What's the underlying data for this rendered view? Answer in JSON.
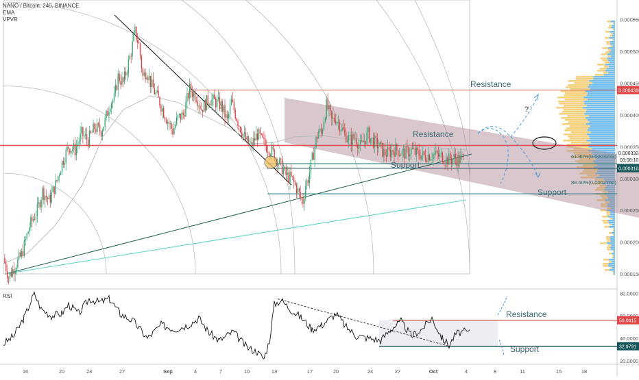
{
  "header": {
    "symbol_line": "NANO / Bitcoin, 240, BINANCE",
    "indicators": [
      "EMA",
      "VPVR"
    ]
  },
  "rsi_panel": {
    "label": "RSI"
  },
  "colors": {
    "up": "#3aa575",
    "down": "#d64545",
    "resistance_line": "#e05555",
    "support_line": "#2f8a86",
    "trendline": "#2e6b5e",
    "trendline_light": "#5fd3c6",
    "channel_fill": "#a9838f",
    "vpvr_up": "#66b6e8",
    "vpvr_down": "#f4c96a",
    "fan_arc": "#bbbbbb",
    "projection": "#4d9bd9"
  },
  "chart_data": [
    {
      "type": "candlestick",
      "title": "NANO / Bitcoin, 240, BINANCE",
      "x_tick_labels": [
        "16",
        "20",
        "23",
        "27",
        "Sep",
        "4",
        "7",
        "10",
        "13",
        "17",
        "20",
        "24",
        "27",
        "Oct",
        "4",
        "8",
        "11",
        "15",
        "18"
      ],
      "y_tick_labels": [
        "0.0001500",
        "0.0002000",
        "0.0002500",
        "0.0003000",
        "0.0003500",
        "0.0004000",
        "0.0004500",
        "0.0005000",
        "0.0005500"
      ],
      "ylim": [
        0.0001287,
        0.0005805
      ],
      "price_path": [
        [
          0,
          0.000175
        ],
        [
          4,
          0.000145
        ],
        [
          8,
          0.00016
        ],
        [
          14,
          0.00018
        ],
        [
          20,
          0.000225
        ],
        [
          26,
          0.00025
        ],
        [
          30,
          0.00028
        ],
        [
          35,
          0.000265
        ],
        [
          40,
          0.00029
        ],
        [
          45,
          0.000325
        ],
        [
          50,
          0.00035
        ],
        [
          55,
          0.000345
        ],
        [
          60,
          0.00037
        ],
        [
          65,
          0.00036
        ],
        [
          70,
          0.00038
        ],
        [
          75,
          0.000375
        ],
        [
          78,
          0.00039
        ],
        [
          82,
          0.00042
        ],
        [
          85,
          0.000425
        ],
        [
          88,
          0.00046
        ],
        [
          92,
          0.00045
        ],
        [
          97,
          0.00049
        ],
        [
          101,
          0.00053
        ],
        [
          104,
          0.00051
        ],
        [
          107,
          0.00046
        ],
        [
          110,
          0.00047
        ],
        [
          114,
          0.000445
        ],
        [
          120,
          0.00042
        ],
        [
          125,
          0.000395
        ],
        [
          130,
          0.000375
        ],
        [
          134,
          0.000395
        ],
        [
          138,
          0.0004
        ],
        [
          143,
          0.00044
        ],
        [
          148,
          0.00043
        ],
        [
          152,
          0.00041
        ],
        [
          158,
          0.000425
        ],
        [
          163,
          0.00042
        ],
        [
          167,
          0.000415
        ],
        [
          172,
          0.00039
        ],
        [
          175,
          0.00042
        ],
        [
          180,
          0.00039
        ],
        [
          186,
          0.00036
        ],
        [
          190,
          0.00035
        ],
        [
          195,
          0.00037
        ],
        [
          200,
          0.000355
        ],
        [
          207,
          0.00034
        ],
        [
          213,
          0.00032
        ],
        [
          217,
          0.000305
        ],
        [
          221,
          0.0003
        ],
        [
          225,
          0.000285
        ],
        [
          228,
          0.00027
        ],
        [
          230,
          0.000265
        ],
        [
          232,
          0.00029
        ],
        [
          234,
          0.0003
        ],
        [
          236,
          0.00032
        ],
        [
          238,
          0.00034
        ],
        [
          240,
          0.00036
        ],
        [
          242,
          0.000375
        ],
        [
          244,
          0.00037
        ],
        [
          246,
          0.000395
        ],
        [
          248,
          0.000415
        ],
        [
          250,
          0.000405
        ],
        [
          252,
          0.00039
        ],
        [
          255,
          0.000395
        ],
        [
          258,
          0.000385
        ],
        [
          262,
          0.00037
        ],
        [
          266,
          0.00036
        ],
        [
          270,
          0.000365
        ],
        [
          274,
          0.00035
        ],
        [
          277,
          0.00036
        ],
        [
          280,
          0.00037
        ],
        [
          283,
          0.00036
        ],
        [
          286,
          0.000355
        ],
        [
          289,
          0.00035
        ],
        [
          292,
          0.00034
        ],
        [
          296,
          0.00034
        ],
        [
          299,
          0.000345
        ],
        [
          302,
          0.000345
        ],
        [
          306,
          0.00034
        ],
        [
          309,
          0.00034
        ],
        [
          313,
          0.000345
        ],
        [
          316,
          0.00034
        ],
        [
          320,
          0.000338
        ],
        [
          323,
          0.000335
        ],
        [
          326,
          0.000337
        ],
        [
          330,
          0.000338
        ],
        [
          334,
          0.000335
        ],
        [
          337,
          0.000335
        ],
        [
          340,
          0.00033
        ],
        [
          343,
          0.00033
        ],
        [
          346,
          0.000332
        ],
        [
          350,
          0.00033
        ],
        [
          353,
          0.000332
        ]
      ],
      "levels": [
        {
          "label": "Resistance",
          "price": 0.000439,
          "tag": "0.0004390"
        },
        {
          "label": "Resistance",
          "price": 0.000352
        },
        {
          "label": "Support",
          "price": 0.0003163,
          "tag": "0.0003163"
        },
        {
          "label": "61.80%(0.0003233)",
          "price": 0.0003233
        },
        {
          "label": "88.60%(0.0002760)",
          "price": 0.000276
        }
      ],
      "price_tag": {
        "price": "0.0003324",
        "countdown": "03:08:10"
      },
      "annotations": [
        "Resistance",
        "Resistance",
        "Support",
        "Support",
        "?"
      ]
    },
    {
      "type": "line",
      "title": "RSI",
      "y_tick_labels": [
        "80.0000",
        "60.0000",
        "40.0000",
        "20.0000"
      ],
      "ylim": [
        17,
        82
      ],
      "levels": [
        {
          "label": "Resistance",
          "value": 56.0415,
          "tag": "56.0415"
        },
        {
          "label": "Support",
          "value": 32.9791,
          "tag": "32.9791"
        }
      ],
      "annotations": [
        "Resistance",
        "Support"
      ]
    }
  ]
}
